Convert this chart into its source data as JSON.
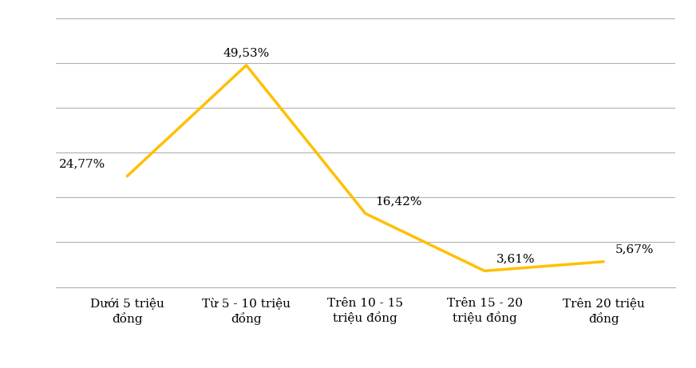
{
  "categories": [
    "Dưới 5 triệu\nđồng",
    "Từ 5 - 10 triệu\nđồng",
    "Trên 10 - 15\ntriệu đồng",
    "Trên 15 - 20\ntriệu đồng",
    "Trên 20 triệu\nđồng"
  ],
  "values": [
    24.77,
    49.53,
    16.42,
    3.61,
    5.67
  ],
  "labels": [
    "24,77%",
    "49,53%",
    "16,42%",
    "3,61%",
    "5,67%"
  ],
  "line_color": "#FFC000",
  "background_color": "#ffffff",
  "grid_color": "#b0b0b0",
  "ylim": [
    0,
    60
  ],
  "label_fontsize": 11,
  "tick_fontsize": 11,
  "line_width": 2.5,
  "label_x_offsets": [
    -0.18,
    0.0,
    0.08,
    0.1,
    0.1
  ],
  "label_y_offsets": [
    1.5,
    1.5,
    1.5,
    1.5,
    1.5
  ],
  "label_ha": [
    "right",
    "center",
    "left",
    "left",
    "left"
  ]
}
